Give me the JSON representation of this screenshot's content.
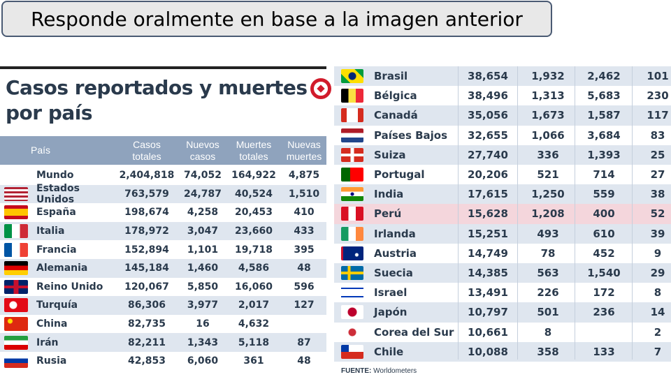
{
  "banner": {
    "text": "Responde oralmente en base a la imagen anterior"
  },
  "infographic": {
    "title_line1": "Casos reportados y muertes",
    "title_line2": "por país",
    "headers": {
      "country": "País",
      "total_cases": "Casos totales",
      "new_cases": "Nuevos casos",
      "total_deaths": "Muertes totales",
      "new_deaths": "Nuevas muertes"
    },
    "rows_left": [
      {
        "country": "Mundo",
        "total_cases": "2,404,818",
        "new_cases": "74,052",
        "total_deaths": "164,922",
        "new_deaths": "4,875",
        "flag": "none"
      },
      {
        "country": "Estados Unidos",
        "total_cases": "763,579",
        "new_cases": "24,787",
        "total_deaths": "40,524",
        "new_deaths": "1,510",
        "flag": "us"
      },
      {
        "country": "España",
        "total_cases": "198,674",
        "new_cases": "4,258",
        "total_deaths": "20,453",
        "new_deaths": "410",
        "flag": "es"
      },
      {
        "country": "Italia",
        "total_cases": "178,972",
        "new_cases": "3,047",
        "total_deaths": "23,660",
        "new_deaths": "433",
        "flag": "it"
      },
      {
        "country": "Francia",
        "total_cases": "152,894",
        "new_cases": "1,101",
        "total_deaths": "19,718",
        "new_deaths": "395",
        "flag": "fr"
      },
      {
        "country": "Alemania",
        "total_cases": "145,184",
        "new_cases": "1,460",
        "total_deaths": "4,586",
        "new_deaths": "48",
        "flag": "de"
      },
      {
        "country": "Reino Unido",
        "total_cases": "120,067",
        "new_cases": "5,850",
        "total_deaths": "16,060",
        "new_deaths": "596",
        "flag": "gb"
      },
      {
        "country": "Turquía",
        "total_cases": "86,306",
        "new_cases": "3,977",
        "total_deaths": "2,017",
        "new_deaths": "127",
        "flag": "tr"
      },
      {
        "country": "China",
        "total_cases": "82,735",
        "new_cases": "16",
        "total_deaths": "4,632",
        "new_deaths": "",
        "flag": "cn"
      },
      {
        "country": "Irán",
        "total_cases": "82,211",
        "new_cases": "1,343",
        "total_deaths": "5,118",
        "new_deaths": "87",
        "flag": "ir"
      },
      {
        "country": "Rusia",
        "total_cases": "42,853",
        "new_cases": "6,060",
        "total_deaths": "361",
        "new_deaths": "48",
        "flag": "ru"
      }
    ],
    "rows_right": [
      {
        "country": "Brasil",
        "total_cases": "38,654",
        "new_cases": "1,932",
        "total_deaths": "2,462",
        "new_deaths": "101",
        "flag": "br"
      },
      {
        "country": "Bélgica",
        "total_cases": "38,496",
        "new_cases": "1,313",
        "total_deaths": "5,683",
        "new_deaths": "230",
        "flag": "be"
      },
      {
        "country": "Canadá",
        "total_cases": "35,056",
        "new_cases": "1,673",
        "total_deaths": "1,587",
        "new_deaths": "117",
        "flag": "ca"
      },
      {
        "country": "Países Bajos",
        "total_cases": "32,655",
        "new_cases": "1,066",
        "total_deaths": "3,684",
        "new_deaths": "83",
        "flag": "nl"
      },
      {
        "country": "Suiza",
        "total_cases": "27,740",
        "new_cases": "336",
        "total_deaths": "1,393",
        "new_deaths": "25",
        "flag": "ch"
      },
      {
        "country": "Portugal",
        "total_cases": "20,206",
        "new_cases": "521",
        "total_deaths": "714",
        "new_deaths": "27",
        "flag": "pt"
      },
      {
        "country": "India",
        "total_cases": "17,615",
        "new_cases": "1,250",
        "total_deaths": "559",
        "new_deaths": "38",
        "flag": "in"
      },
      {
        "country": "Perú",
        "total_cases": "15,628",
        "new_cases": "1,208",
        "total_deaths": "400",
        "new_deaths": "52",
        "flag": "pe",
        "highlight": true
      },
      {
        "country": "Irlanda",
        "total_cases": "15,251",
        "new_cases": "493",
        "total_deaths": "610",
        "new_deaths": "39",
        "flag": "ie"
      },
      {
        "country": "Austria",
        "total_cases": "14,749",
        "new_cases": "78",
        "total_deaths": "452",
        "new_deaths": "9",
        "flag": "au"
      },
      {
        "country": "Suecia",
        "total_cases": "14,385",
        "new_cases": "563",
        "total_deaths": "1,540",
        "new_deaths": "29",
        "flag": "se"
      },
      {
        "country": "Israel",
        "total_cases": "13,491",
        "new_cases": "226",
        "total_deaths": "172",
        "new_deaths": "8",
        "flag": "il"
      },
      {
        "country": "Japón",
        "total_cases": "10,797",
        "new_cases": "501",
        "total_deaths": "236",
        "new_deaths": "14",
        "flag": "jp"
      },
      {
        "country": "Corea del Sur",
        "total_cases": "10,661",
        "new_cases": "8",
        "total_deaths": "",
        "new_deaths": "2",
        "flag": "kr"
      },
      {
        "country": "Chile",
        "total_cases": "10,088",
        "new_cases": "358",
        "total_deaths": "133",
        "new_deaths": "7",
        "flag": "cl"
      }
    ],
    "source_label": "FUENTE:",
    "source_name": "Worldometers"
  }
}
